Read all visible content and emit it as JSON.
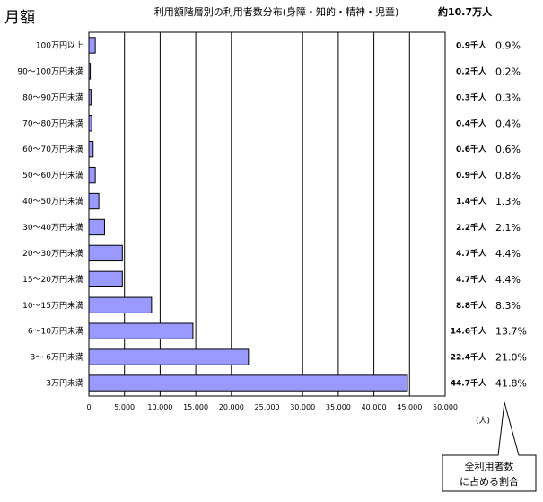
{
  "corner_label": "月額",
  "total_label": "約10.7万人",
  "unit_label": "(人)",
  "callout_text": [
    "全利用者数",
    "に占める割合"
  ],
  "chart_data": {
    "type": "bar",
    "orientation": "horizontal",
    "title": "利用額階層別の利用者数分布(身障・知的・精神・児童)",
    "categories": [
      "100万円以上",
      "90～100万円未満",
      "80～90万円未満",
      "70～80万円未満",
      "60～70万円未満",
      "50～60万円未満",
      "40～50万円未満",
      "30～40万円未満",
      "20～30万円未満",
      "15～20万円未満",
      "10～15万円未満",
      "6～10万円未満",
      "3～ 6万円未満",
      "3万円未満"
    ],
    "values": [
      900,
      200,
      300,
      400,
      600,
      900,
      1400,
      2200,
      4700,
      4700,
      8800,
      14600,
      22400,
      44700
    ],
    "count_labels": [
      "0.9千人",
      "0.2千人",
      "0.3千人",
      "0.4千人",
      "0.6千人",
      "0.9千人",
      "1.4千人",
      "2.2千人",
      "4.7千人",
      "4.7千人",
      "8.8千人",
      "14.6千人",
      "22.4千人",
      "44.7千人"
    ],
    "percent_labels": [
      "0.9%",
      "0.2%",
      "0.3%",
      "0.4%",
      "0.6%",
      "0.8%",
      "1.3%",
      "2.1%",
      "4.4%",
      "4.4%",
      "8.3%",
      "13.7%",
      "21.0%",
      "41.8%"
    ],
    "xlim": [
      0,
      50000
    ],
    "xticks": [
      0,
      5000,
      10000,
      15000,
      20000,
      25000,
      30000,
      35000,
      40000,
      45000,
      50000
    ],
    "xtick_labels": [
      "0",
      "5,000",
      "10,000",
      "15,000",
      "20,000",
      "25,000",
      "30,000",
      "35,000",
      "40,000",
      "45,000",
      "50,000"
    ],
    "grid": true,
    "bar_color": "#9999ff"
  }
}
